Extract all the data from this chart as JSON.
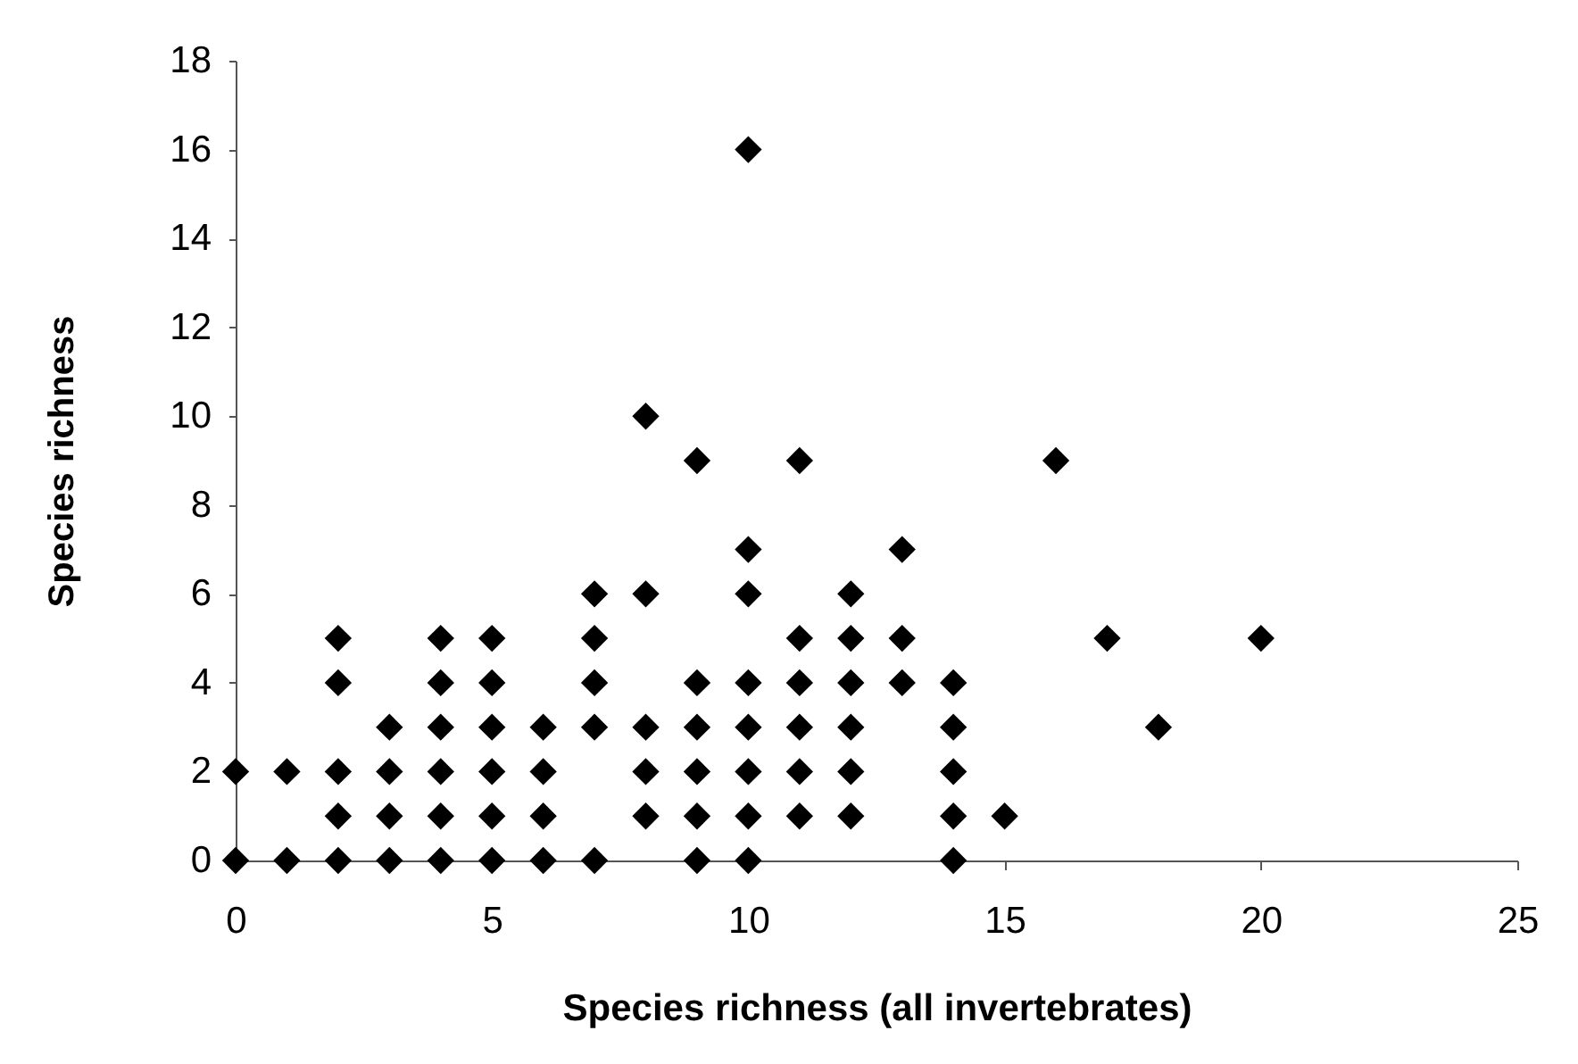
{
  "chart_data": {
    "type": "scatter",
    "xlabel": "Species richness (all invertebrates)",
    "ylabel": "Species richness",
    "marker": "diamond",
    "xlim": [
      0,
      25
    ],
    "ylim": [
      0,
      18
    ],
    "xticks": [
      0,
      5,
      10,
      15,
      20,
      25
    ],
    "yticks": [
      0,
      2,
      4,
      6,
      8,
      10,
      12,
      14,
      16,
      18
    ],
    "series": [
      {
        "color": "#000000",
        "x": [
          0,
          0,
          1,
          1,
          2,
          2,
          2,
          2,
          2,
          3,
          3,
          3,
          3,
          4,
          4,
          4,
          4,
          4,
          4,
          5,
          5,
          5,
          5,
          5,
          5,
          6,
          6,
          6,
          6,
          7,
          7,
          7,
          7,
          7,
          8,
          8,
          8,
          8,
          8,
          9,
          9,
          9,
          9,
          9,
          9,
          10,
          10,
          10,
          10,
          10,
          10,
          10,
          10,
          11,
          11,
          11,
          11,
          11,
          11,
          12,
          12,
          12,
          12,
          12,
          12,
          13,
          13,
          13,
          14,
          14,
          14,
          14,
          14,
          15,
          16,
          17,
          18,
          20
        ],
        "values": [
          0,
          2,
          0,
          2,
          0,
          1,
          2,
          4,
          5,
          0,
          1,
          2,
          3,
          0,
          1,
          2,
          3,
          4,
          5,
          0,
          1,
          2,
          3,
          4,
          5,
          0,
          1,
          2,
          3,
          0,
          3,
          4,
          5,
          6,
          1,
          2,
          3,
          6,
          10,
          0,
          1,
          2,
          3,
          4,
          9,
          0,
          1,
          2,
          3,
          4,
          6,
          7,
          16,
          1,
          2,
          3,
          4,
          5,
          9,
          1,
          2,
          3,
          4,
          5,
          6,
          4,
          5,
          7,
          0,
          1,
          2,
          3,
          4,
          1,
          9,
          5,
          3,
          5
        ]
      }
    ]
  }
}
